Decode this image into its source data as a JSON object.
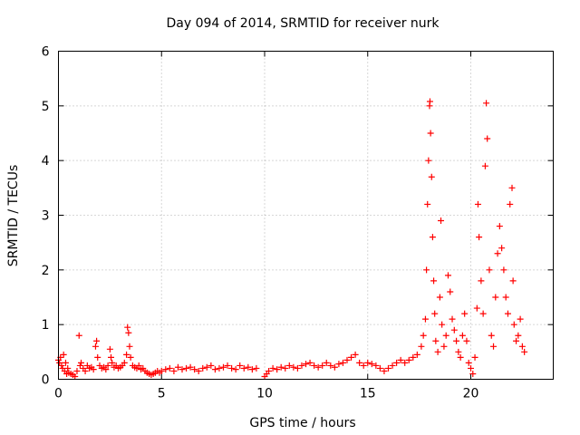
{
  "chart_data": {
    "type": "scatter",
    "title": "Day 094 of 2014, SRMTID for receiver nurk",
    "xlabel": "GPS time / hours",
    "ylabel": "SRMTID / TECUs",
    "xlim": [
      0,
      24
    ],
    "ylim": [
      0,
      6
    ],
    "xticks": [
      0,
      5,
      10,
      15,
      20
    ],
    "xtick_labels": [
      "0",
      "5",
      "10",
      "15",
      "20"
    ],
    "yticks": [
      0,
      1,
      2,
      3,
      4,
      5,
      6
    ],
    "ytick_labels": [
      "0",
      "1",
      "2",
      "3",
      "4",
      "5",
      "6"
    ],
    "grid": true,
    "marker": "+",
    "color": "#ff0000",
    "series": [
      {
        "name": "SRMTID",
        "points": [
          [
            0.0,
            0.35
          ],
          [
            0.05,
            0.3
          ],
          [
            0.1,
            0.4
          ],
          [
            0.15,
            0.25
          ],
          [
            0.2,
            0.2
          ],
          [
            0.25,
            0.45
          ],
          [
            0.3,
            0.15
          ],
          [
            0.35,
            0.3
          ],
          [
            0.4,
            0.1
          ],
          [
            0.45,
            0.2
          ],
          [
            0.5,
            0.12
          ],
          [
            0.6,
            0.1
          ],
          [
            0.7,
            0.08
          ],
          [
            0.8,
            0.05
          ],
          [
            0.9,
            0.15
          ],
          [
            1.0,
            0.8
          ],
          [
            1.05,
            0.25
          ],
          [
            1.1,
            0.3
          ],
          [
            1.2,
            0.2
          ],
          [
            1.3,
            0.15
          ],
          [
            1.4,
            0.25
          ],
          [
            1.5,
            0.2
          ],
          [
            1.6,
            0.22
          ],
          [
            1.7,
            0.18
          ],
          [
            1.8,
            0.6
          ],
          [
            1.85,
            0.7
          ],
          [
            1.9,
            0.4
          ],
          [
            2.0,
            0.25
          ],
          [
            2.1,
            0.2
          ],
          [
            2.2,
            0.22
          ],
          [
            2.3,
            0.18
          ],
          [
            2.4,
            0.25
          ],
          [
            2.5,
            0.55
          ],
          [
            2.55,
            0.4
          ],
          [
            2.6,
            0.3
          ],
          [
            2.7,
            0.22
          ],
          [
            2.8,
            0.25
          ],
          [
            2.9,
            0.2
          ],
          [
            3.0,
            0.22
          ],
          [
            3.1,
            0.25
          ],
          [
            3.2,
            0.3
          ],
          [
            3.3,
            0.45
          ],
          [
            3.35,
            0.95
          ],
          [
            3.4,
            0.85
          ],
          [
            3.45,
            0.6
          ],
          [
            3.5,
            0.4
          ],
          [
            3.6,
            0.25
          ],
          [
            3.7,
            0.22
          ],
          [
            3.8,
            0.2
          ],
          [
            3.9,
            0.25
          ],
          [
            4.0,
            0.18
          ],
          [
            4.1,
            0.2
          ],
          [
            4.2,
            0.15
          ],
          [
            4.3,
            0.12
          ],
          [
            4.4,
            0.1
          ],
          [
            4.5,
            0.08
          ],
          [
            4.6,
            0.1
          ],
          [
            4.7,
            0.12
          ],
          [
            4.8,
            0.15
          ],
          [
            4.9,
            0.12
          ],
          [
            5.0,
            0.15
          ],
          [
            5.2,
            0.18
          ],
          [
            5.4,
            0.2
          ],
          [
            5.6,
            0.15
          ],
          [
            5.8,
            0.22
          ],
          [
            6.0,
            0.18
          ],
          [
            6.2,
            0.2
          ],
          [
            6.4,
            0.22
          ],
          [
            6.6,
            0.18
          ],
          [
            6.8,
            0.15
          ],
          [
            7.0,
            0.2
          ],
          [
            7.2,
            0.22
          ],
          [
            7.4,
            0.25
          ],
          [
            7.6,
            0.18
          ],
          [
            7.8,
            0.2
          ],
          [
            8.0,
            0.22
          ],
          [
            8.2,
            0.25
          ],
          [
            8.4,
            0.2
          ],
          [
            8.6,
            0.18
          ],
          [
            8.8,
            0.25
          ],
          [
            9.0,
            0.2
          ],
          [
            9.2,
            0.22
          ],
          [
            9.4,
            0.18
          ],
          [
            9.6,
            0.2
          ],
          [
            10.0,
            0.05
          ],
          [
            10.1,
            0.1
          ],
          [
            10.2,
            0.15
          ],
          [
            10.4,
            0.2
          ],
          [
            10.6,
            0.18
          ],
          [
            10.8,
            0.22
          ],
          [
            11.0,
            0.2
          ],
          [
            11.2,
            0.25
          ],
          [
            11.4,
            0.22
          ],
          [
            11.6,
            0.2
          ],
          [
            11.8,
            0.25
          ],
          [
            12.0,
            0.28
          ],
          [
            12.2,
            0.3
          ],
          [
            12.4,
            0.25
          ],
          [
            12.6,
            0.22
          ],
          [
            12.8,
            0.25
          ],
          [
            13.0,
            0.3
          ],
          [
            13.2,
            0.25
          ],
          [
            13.4,
            0.22
          ],
          [
            13.6,
            0.28
          ],
          [
            13.8,
            0.3
          ],
          [
            14.0,
            0.35
          ],
          [
            14.2,
            0.4
          ],
          [
            14.4,
            0.45
          ],
          [
            14.6,
            0.3
          ],
          [
            14.8,
            0.25
          ],
          [
            15.0,
            0.3
          ],
          [
            15.2,
            0.28
          ],
          [
            15.4,
            0.25
          ],
          [
            15.6,
            0.2
          ],
          [
            15.8,
            0.15
          ],
          [
            16.0,
            0.2
          ],
          [
            16.2,
            0.25
          ],
          [
            16.4,
            0.3
          ],
          [
            16.6,
            0.35
          ],
          [
            16.8,
            0.3
          ],
          [
            17.0,
            0.35
          ],
          [
            17.2,
            0.4
          ],
          [
            17.4,
            0.45
          ],
          [
            17.6,
            0.6
          ],
          [
            17.7,
            0.8
          ],
          [
            17.8,
            1.1
          ],
          [
            17.85,
            2.0
          ],
          [
            17.9,
            3.2
          ],
          [
            17.95,
            4.0
          ],
          [
            18.0,
            5.0
          ],
          [
            18.02,
            5.08
          ],
          [
            18.05,
            4.5
          ],
          [
            18.1,
            3.7
          ],
          [
            18.15,
            2.6
          ],
          [
            18.2,
            1.8
          ],
          [
            18.25,
            1.2
          ],
          [
            18.3,
            0.7
          ],
          [
            18.4,
            0.5
          ],
          [
            18.5,
            1.5
          ],
          [
            18.55,
            2.9
          ],
          [
            18.6,
            1.0
          ],
          [
            18.7,
            0.6
          ],
          [
            18.8,
            0.8
          ],
          [
            18.9,
            1.9
          ],
          [
            19.0,
            1.6
          ],
          [
            19.1,
            1.1
          ],
          [
            19.2,
            0.9
          ],
          [
            19.3,
            0.7
          ],
          [
            19.4,
            0.5
          ],
          [
            19.5,
            0.4
          ],
          [
            19.6,
            0.8
          ],
          [
            19.7,
            1.2
          ],
          [
            19.8,
            0.7
          ],
          [
            19.9,
            0.3
          ],
          [
            20.0,
            0.2
          ],
          [
            20.1,
            0.1
          ],
          [
            20.2,
            0.4
          ],
          [
            20.3,
            1.3
          ],
          [
            20.35,
            3.2
          ],
          [
            20.4,
            2.6
          ],
          [
            20.5,
            1.8
          ],
          [
            20.6,
            1.2
          ],
          [
            20.7,
            3.9
          ],
          [
            20.75,
            5.05
          ],
          [
            20.8,
            4.4
          ],
          [
            20.9,
            2.0
          ],
          [
            21.0,
            0.8
          ],
          [
            21.1,
            0.6
          ],
          [
            21.2,
            1.5
          ],
          [
            21.3,
            2.3
          ],
          [
            21.4,
            2.8
          ],
          [
            21.5,
            2.4
          ],
          [
            21.6,
            2.0
          ],
          [
            21.7,
            1.5
          ],
          [
            21.8,
            1.2
          ],
          [
            21.9,
            3.2
          ],
          [
            22.0,
            3.5
          ],
          [
            22.05,
            1.8
          ],
          [
            22.1,
            1.0
          ],
          [
            22.2,
            0.7
          ],
          [
            22.3,
            0.8
          ],
          [
            22.4,
            1.1
          ],
          [
            22.5,
            0.6
          ],
          [
            22.6,
            0.5
          ]
        ]
      }
    ]
  }
}
